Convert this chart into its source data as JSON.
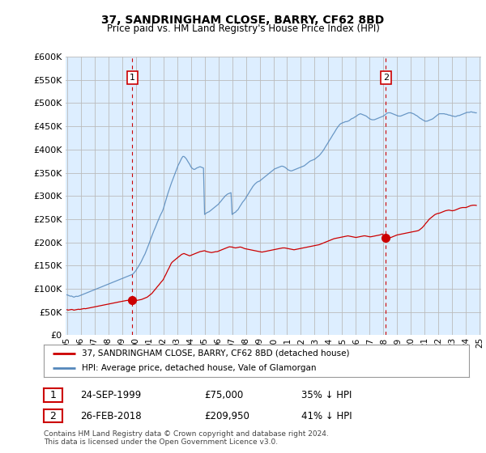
{
  "title": "37, SANDRINGHAM CLOSE, BARRY, CF62 8BD",
  "subtitle": "Price paid vs. HM Land Registry's House Price Index (HPI)",
  "legend_line1": "37, SANDRINGHAM CLOSE, BARRY, CF62 8BD (detached house)",
  "legend_line2": "HPI: Average price, detached house, Vale of Glamorgan",
  "footnote": "Contains HM Land Registry data © Crown copyright and database right 2024.\nThis data is licensed under the Open Government Licence v3.0.",
  "transaction1_label": "1",
  "transaction1_date": "24-SEP-1999",
  "transaction1_price": "£75,000",
  "transaction1_hpi": "35% ↓ HPI",
  "transaction2_label": "2",
  "transaction2_date": "26-FEB-2018",
  "transaction2_price": "£209,950",
  "transaction2_hpi": "41% ↓ HPI",
  "red_color": "#cc0000",
  "blue_color": "#5588bb",
  "vline_color": "#cc0000",
  "grid_color": "#bbbbbb",
  "bg_color": "#ffffff",
  "plot_bg_color": "#ddeeff",
  "ylim": [
    0,
    600000
  ],
  "yticks": [
    0,
    50000,
    100000,
    150000,
    200000,
    250000,
    300000,
    350000,
    400000,
    450000,
    500000,
    550000,
    600000
  ],
  "marker1_x": 1999.75,
  "marker1_y": 75000,
  "marker2_x": 2018.17,
  "marker2_y": 209950,
  "xlim_left": 1994.9,
  "xlim_right": 2025.1,
  "hpi_x": [
    1995.0,
    1995.08,
    1995.17,
    1995.25,
    1995.33,
    1995.42,
    1995.5,
    1995.58,
    1995.67,
    1995.75,
    1995.83,
    1995.92,
    1996.0,
    1996.08,
    1996.17,
    1996.25,
    1996.33,
    1996.42,
    1996.5,
    1996.58,
    1996.67,
    1996.75,
    1996.83,
    1996.92,
    1997.0,
    1997.08,
    1997.17,
    1997.25,
    1997.33,
    1997.42,
    1997.5,
    1997.58,
    1997.67,
    1997.75,
    1997.83,
    1997.92,
    1998.0,
    1998.08,
    1998.17,
    1998.25,
    1998.33,
    1998.42,
    1998.5,
    1998.58,
    1998.67,
    1998.75,
    1998.83,
    1998.92,
    1999.0,
    1999.08,
    1999.17,
    1999.25,
    1999.33,
    1999.42,
    1999.5,
    1999.58,
    1999.67,
    1999.75,
    1999.83,
    1999.92,
    2000.0,
    2000.08,
    2000.17,
    2000.25,
    2000.33,
    2000.42,
    2000.5,
    2000.58,
    2000.67,
    2000.75,
    2000.83,
    2000.92,
    2001.0,
    2001.08,
    2001.17,
    2001.25,
    2001.33,
    2001.42,
    2001.5,
    2001.58,
    2001.67,
    2001.75,
    2001.83,
    2001.92,
    2002.0,
    2002.08,
    2002.17,
    2002.25,
    2002.33,
    2002.42,
    2002.5,
    2002.58,
    2002.67,
    2002.75,
    2002.83,
    2002.92,
    2003.0,
    2003.08,
    2003.17,
    2003.25,
    2003.33,
    2003.42,
    2003.5,
    2003.58,
    2003.67,
    2003.75,
    2003.83,
    2003.92,
    2004.0,
    2004.08,
    2004.17,
    2004.25,
    2004.33,
    2004.42,
    2004.5,
    2004.58,
    2004.67,
    2004.75,
    2004.83,
    2004.92,
    2005.0,
    2005.08,
    2005.17,
    2005.25,
    2005.33,
    2005.42,
    2005.5,
    2005.58,
    2005.67,
    2005.75,
    2005.83,
    2005.92,
    2006.0,
    2006.08,
    2006.17,
    2006.25,
    2006.33,
    2006.42,
    2006.5,
    2006.58,
    2006.67,
    2006.75,
    2006.83,
    2006.92,
    2007.0,
    2007.08,
    2007.17,
    2007.25,
    2007.33,
    2007.42,
    2007.5,
    2007.58,
    2007.67,
    2007.75,
    2007.83,
    2007.92,
    2008.0,
    2008.08,
    2008.17,
    2008.25,
    2008.33,
    2008.42,
    2008.5,
    2008.58,
    2008.67,
    2008.75,
    2008.83,
    2008.92,
    2009.0,
    2009.08,
    2009.17,
    2009.25,
    2009.33,
    2009.42,
    2009.5,
    2009.58,
    2009.67,
    2009.75,
    2009.83,
    2009.92,
    2010.0,
    2010.08,
    2010.17,
    2010.25,
    2010.33,
    2010.42,
    2010.5,
    2010.58,
    2010.67,
    2010.75,
    2010.83,
    2010.92,
    2011.0,
    2011.08,
    2011.17,
    2011.25,
    2011.33,
    2011.42,
    2011.5,
    2011.58,
    2011.67,
    2011.75,
    2011.83,
    2011.92,
    2012.0,
    2012.08,
    2012.17,
    2012.25,
    2012.33,
    2012.42,
    2012.5,
    2012.58,
    2012.67,
    2012.75,
    2012.83,
    2012.92,
    2013.0,
    2013.08,
    2013.17,
    2013.25,
    2013.33,
    2013.42,
    2013.5,
    2013.58,
    2013.67,
    2013.75,
    2013.83,
    2013.92,
    2014.0,
    2014.08,
    2014.17,
    2014.25,
    2014.33,
    2014.42,
    2014.5,
    2014.58,
    2014.67,
    2014.75,
    2014.83,
    2014.92,
    2015.0,
    2015.08,
    2015.17,
    2015.25,
    2015.33,
    2015.42,
    2015.5,
    2015.58,
    2015.67,
    2015.75,
    2015.83,
    2015.92,
    2016.0,
    2016.08,
    2016.17,
    2016.25,
    2016.33,
    2016.42,
    2016.5,
    2016.58,
    2016.67,
    2016.75,
    2016.83,
    2016.92,
    2017.0,
    2017.08,
    2017.17,
    2017.25,
    2017.33,
    2017.42,
    2017.5,
    2017.58,
    2017.67,
    2017.75,
    2017.83,
    2017.92,
    2018.0,
    2018.08,
    2018.17,
    2018.25,
    2018.33,
    2018.42,
    2018.5,
    2018.58,
    2018.67,
    2018.75,
    2018.83,
    2018.92,
    2019.0,
    2019.08,
    2019.17,
    2019.25,
    2019.33,
    2019.42,
    2019.5,
    2019.58,
    2019.67,
    2019.75,
    2019.83,
    2019.92,
    2020.0,
    2020.08,
    2020.17,
    2020.25,
    2020.33,
    2020.42,
    2020.5,
    2020.58,
    2020.67,
    2020.75,
    2020.83,
    2020.92,
    2021.0,
    2021.08,
    2021.17,
    2021.25,
    2021.33,
    2021.42,
    2021.5,
    2021.58,
    2021.67,
    2021.75,
    2021.83,
    2021.92,
    2022.0,
    2022.08,
    2022.17,
    2022.25,
    2022.33,
    2022.42,
    2022.5,
    2022.58,
    2022.67,
    2022.75,
    2022.83,
    2022.92,
    2023.0,
    2023.08,
    2023.17,
    2023.25,
    2023.33,
    2023.42,
    2023.5,
    2023.58,
    2023.67,
    2023.75,
    2023.83,
    2023.92,
    2024.0,
    2024.08,
    2024.17,
    2024.25,
    2024.33,
    2024.42,
    2024.5,
    2024.58,
    2024.67,
    2024.75
  ],
  "hpi_y": [
    87000,
    86000,
    85000,
    84000,
    84500,
    83000,
    82000,
    83000,
    84000,
    83500,
    84000,
    85000,
    86000,
    87000,
    88000,
    89000,
    90000,
    91000,
    92000,
    93000,
    94000,
    95000,
    96000,
    97000,
    98000,
    99000,
    100000,
    101000,
    102000,
    103000,
    104000,
    105000,
    106000,
    107000,
    108000,
    109000,
    110000,
    111000,
    112000,
    113000,
    114000,
    115000,
    116000,
    117000,
    118000,
    119000,
    120000,
    121000,
    122000,
    123000,
    124000,
    125000,
    126000,
    127000,
    128000,
    129000,
    130000,
    131000,
    133000,
    136000,
    139000,
    143000,
    147000,
    151000,
    155000,
    160000,
    165000,
    170000,
    175000,
    181000,
    187000,
    194000,
    200000,
    207000,
    214000,
    220000,
    226000,
    232000,
    238000,
    244000,
    250000,
    256000,
    261000,
    266000,
    272000,
    280000,
    289000,
    297000,
    305000,
    313000,
    320000,
    327000,
    334000,
    340000,
    346000,
    353000,
    360000,
    366000,
    371000,
    376000,
    381000,
    385000,
    385000,
    383000,
    380000,
    376000,
    372000,
    368000,
    363000,
    360000,
    358000,
    357000,
    358000,
    360000,
    361000,
    362000,
    363000,
    362000,
    361000,
    360000,
    260000,
    262000,
    264000,
    265000,
    266000,
    268000,
    270000,
    272000,
    274000,
    276000,
    278000,
    280000,
    282000,
    285000,
    288000,
    291000,
    294000,
    297000,
    300000,
    302000,
    304000,
    305000,
    306000,
    307000,
    260000,
    262000,
    264000,
    265000,
    268000,
    270000,
    274000,
    278000,
    282000,
    286000,
    289000,
    292000,
    296000,
    300000,
    304000,
    308000,
    312000,
    316000,
    320000,
    323000,
    326000,
    328000,
    330000,
    331000,
    332000,
    334000,
    336000,
    338000,
    340000,
    342000,
    344000,
    346000,
    348000,
    350000,
    352000,
    354000,
    356000,
    358000,
    359000,
    360000,
    361000,
    362000,
    363000,
    364000,
    364000,
    363000,
    362000,
    360000,
    358000,
    356000,
    355000,
    354000,
    354000,
    355000,
    356000,
    357000,
    358000,
    359000,
    360000,
    361000,
    362000,
    363000,
    364000,
    365000,
    367000,
    369000,
    371000,
    373000,
    375000,
    376000,
    377000,
    378000,
    379000,
    381000,
    383000,
    385000,
    387000,
    390000,
    393000,
    396000,
    400000,
    404000,
    408000,
    412000,
    416000,
    420000,
    424000,
    428000,
    432000,
    436000,
    440000,
    444000,
    448000,
    451000,
    454000,
    456000,
    457000,
    458000,
    459000,
    460000,
    460000,
    461000,
    462000,
    464000,
    466000,
    467000,
    468000,
    470000,
    471000,
    473000,
    475000,
    476000,
    477000,
    476000,
    475000,
    474000,
    473000,
    472000,
    470000,
    468000,
    466000,
    465000,
    464000,
    464000,
    464000,
    465000,
    466000,
    467000,
    468000,
    469000,
    470000,
    471000,
    472000,
    474000,
    476000,
    478000,
    479000,
    479000,
    479000,
    478000,
    477000,
    476000,
    475000,
    474000,
    473000,
    472000,
    472000,
    472000,
    473000,
    474000,
    475000,
    476000,
    477000,
    478000,
    479000,
    479000,
    479000,
    478000,
    477000,
    476000,
    474000,
    473000,
    471000,
    469000,
    467000,
    466000,
    464000,
    463000,
    461000,
    461000,
    461000,
    462000,
    463000,
    464000,
    465000,
    466000,
    468000,
    470000,
    472000,
    474000,
    476000,
    477000,
    477000,
    477000,
    477000,
    477000,
    476000,
    476000,
    475000,
    474000,
    474000,
    473000,
    472000,
    472000,
    471000,
    471000,
    472000,
    473000,
    473000,
    474000,
    475000,
    476000,
    477000,
    478000,
    479000,
    480000,
    480000,
    480000,
    481000,
    481000,
    480000,
    480000,
    479000,
    479000
  ],
  "red_x": [
    1995.0,
    1995.08,
    1995.17,
    1995.25,
    1995.33,
    1995.42,
    1995.5,
    1995.58,
    1995.67,
    1995.75,
    1995.83,
    1995.92,
    1996.0,
    1996.08,
    1996.17,
    1996.25,
    1996.33,
    1996.42,
    1996.5,
    1996.58,
    1996.67,
    1996.75,
    1996.83,
    1996.92,
    1997.0,
    1997.08,
    1997.17,
    1997.25,
    1997.33,
    1997.42,
    1997.5,
    1997.58,
    1997.67,
    1997.75,
    1997.83,
    1997.92,
    1998.0,
    1998.08,
    1998.17,
    1998.25,
    1998.33,
    1998.42,
    1998.5,
    1998.58,
    1998.67,
    1998.75,
    1998.83,
    1998.92,
    1999.0,
    1999.08,
    1999.17,
    1999.25,
    1999.33,
    1999.42,
    1999.5,
    1999.58,
    1999.67,
    1999.75,
    2000.0,
    2000.08,
    2000.17,
    2000.25,
    2000.33,
    2000.42,
    2000.5,
    2000.58,
    2000.67,
    2000.75,
    2000.83,
    2000.92,
    2001.0,
    2001.08,
    2001.17,
    2001.25,
    2001.33,
    2001.42,
    2001.5,
    2001.58,
    2001.67,
    2001.75,
    2001.83,
    2001.92,
    2002.0,
    2002.08,
    2002.17,
    2002.25,
    2002.33,
    2002.42,
    2002.5,
    2002.58,
    2002.67,
    2002.75,
    2002.83,
    2002.92,
    2003.0,
    2003.08,
    2003.17,
    2003.25,
    2003.33,
    2003.42,
    2003.5,
    2003.58,
    2003.67,
    2003.75,
    2003.83,
    2003.92,
    2004.0,
    2004.08,
    2004.17,
    2004.25,
    2004.33,
    2004.42,
    2004.5,
    2004.58,
    2004.67,
    2004.75,
    2004.83,
    2004.92,
    2005.0,
    2005.08,
    2005.17,
    2005.25,
    2005.33,
    2005.42,
    2005.5,
    2005.58,
    2005.67,
    2005.75,
    2005.83,
    2005.92,
    2006.0,
    2006.08,
    2006.17,
    2006.25,
    2006.33,
    2006.42,
    2006.5,
    2006.58,
    2006.67,
    2006.75,
    2006.83,
    2006.92,
    2007.0,
    2007.08,
    2007.17,
    2007.25,
    2007.33,
    2007.42,
    2007.5,
    2007.58,
    2007.67,
    2007.75,
    2007.83,
    2007.92,
    2008.0,
    2008.08,
    2008.17,
    2008.25,
    2008.33,
    2008.42,
    2008.5,
    2008.58,
    2008.67,
    2008.75,
    2008.83,
    2008.92,
    2009.0,
    2009.08,
    2009.17,
    2009.25,
    2009.33,
    2009.42,
    2009.5,
    2009.58,
    2009.67,
    2009.75,
    2009.83,
    2009.92,
    2010.0,
    2010.08,
    2010.17,
    2010.25,
    2010.33,
    2010.42,
    2010.5,
    2010.58,
    2010.67,
    2010.75,
    2010.83,
    2010.92,
    2011.0,
    2011.08,
    2011.17,
    2011.25,
    2011.33,
    2011.42,
    2011.5,
    2011.58,
    2011.67,
    2011.75,
    2011.83,
    2011.92,
    2012.0,
    2012.08,
    2012.17,
    2012.25,
    2012.33,
    2012.42,
    2012.5,
    2012.58,
    2012.67,
    2012.75,
    2012.83,
    2012.92,
    2013.0,
    2013.08,
    2013.17,
    2013.25,
    2013.33,
    2013.42,
    2013.5,
    2013.58,
    2013.67,
    2013.75,
    2013.83,
    2013.92,
    2014.0,
    2014.08,
    2014.17,
    2014.25,
    2014.33,
    2014.42,
    2014.5,
    2014.58,
    2014.67,
    2014.75,
    2014.83,
    2014.92,
    2015.0,
    2015.08,
    2015.17,
    2015.25,
    2015.33,
    2015.42,
    2015.5,
    2015.58,
    2015.67,
    2015.75,
    2015.83,
    2015.92,
    2016.0,
    2016.08,
    2016.17,
    2016.25,
    2016.33,
    2016.42,
    2016.5,
    2016.58,
    2016.67,
    2016.75,
    2016.83,
    2016.92,
    2017.0,
    2017.08,
    2017.17,
    2017.25,
    2017.33,
    2017.42,
    2017.5,
    2017.58,
    2017.67,
    2017.75,
    2017.83,
    2017.92,
    2018.17,
    2018.5,
    2018.58,
    2018.67,
    2018.75,
    2018.83,
    2018.92,
    2019.0,
    2019.08,
    2019.17,
    2019.25,
    2019.33,
    2019.42,
    2019.5,
    2019.58,
    2019.67,
    2019.75,
    2019.83,
    2019.92,
    2020.0,
    2020.08,
    2020.17,
    2020.25,
    2020.33,
    2020.42,
    2020.5,
    2020.58,
    2020.67,
    2020.75,
    2020.83,
    2020.92,
    2021.0,
    2021.08,
    2021.17,
    2021.25,
    2021.33,
    2021.42,
    2021.5,
    2021.58,
    2021.67,
    2021.75,
    2021.83,
    2021.92,
    2022.0,
    2022.08,
    2022.17,
    2022.25,
    2022.33,
    2022.42,
    2022.5,
    2022.58,
    2022.67,
    2022.75,
    2022.83,
    2022.92,
    2023.0,
    2023.08,
    2023.17,
    2023.25,
    2023.33,
    2023.42,
    2023.5,
    2023.58,
    2023.67,
    2023.75,
    2023.83,
    2023.92,
    2024.0,
    2024.08,
    2024.17,
    2024.25,
    2024.33,
    2024.42,
    2024.5,
    2024.58,
    2024.67,
    2024.75
  ],
  "red_y": [
    55000,
    54000,
    54500,
    55000,
    55500,
    55000,
    54000,
    54500,
    55000,
    55500,
    56000,
    55500,
    56000,
    56500,
    57000,
    57500,
    57000,
    57500,
    58000,
    58500,
    59000,
    59500,
    60000,
    60500,
    61000,
    61500,
    62000,
    62500,
    63000,
    63500,
    64000,
    64500,
    65000,
    65500,
    66000,
    66500,
    67000,
    67500,
    68000,
    68500,
    69000,
    69500,
    70000,
    70500,
    71000,
    71500,
    72000,
    72500,
    73000,
    73500,
    74000,
    74500,
    74800,
    75000,
    75200,
    75000,
    74800,
    75000,
    74500,
    75000,
    75500,
    76000,
    76500,
    77000,
    78000,
    79000,
    80000,
    81000,
    82000,
    84000,
    86000,
    88000,
    90000,
    93000,
    96000,
    99000,
    102000,
    105000,
    108000,
    111000,
    114000,
    117000,
    120000,
    125000,
    130000,
    135000,
    140000,
    145000,
    150000,
    155000,
    158000,
    160000,
    162000,
    164000,
    166000,
    168000,
    170000,
    172000,
    174000,
    175000,
    176000,
    175000,
    174000,
    173000,
    172000,
    171000,
    172000,
    173000,
    174000,
    175000,
    176000,
    177000,
    178000,
    179000,
    180000,
    180500,
    181000,
    181500,
    182000,
    181000,
    180000,
    179500,
    179000,
    178500,
    178000,
    178500,
    179000,
    179500,
    180000,
    180000,
    181000,
    182000,
    183000,
    184000,
    185000,
    186000,
    187000,
    188000,
    189000,
    190000,
    190500,
    190000,
    190000,
    189000,
    188500,
    188000,
    188500,
    189000,
    189500,
    190000,
    189500,
    188500,
    187500,
    186500,
    186000,
    185500,
    185000,
    184500,
    184000,
    183500,
    183000,
    182500,
    182000,
    181500,
    181000,
    180500,
    180000,
    179500,
    179000,
    179500,
    180000,
    180500,
    181000,
    181500,
    182000,
    182500,
    183000,
    183500,
    184000,
    184500,
    185000,
    185500,
    186000,
    186500,
    187000,
    187500,
    188000,
    188000,
    188000,
    187500,
    187000,
    186500,
    186000,
    185500,
    185000,
    184500,
    184000,
    184500,
    185000,
    185500,
    186000,
    186500,
    187000,
    187500,
    188000,
    188500,
    189000,
    189500,
    190000,
    190500,
    191000,
    191500,
    192000,
    192500,
    193000,
    193500,
    194000,
    194500,
    195000,
    196000,
    197000,
    198000,
    199000,
    200000,
    201000,
    202000,
    203000,
    204000,
    205000,
    206000,
    207000,
    208000,
    208500,
    209000,
    209500,
    210000,
    210500,
    211000,
    211500,
    212000,
    212500,
    213000,
    213500,
    214000,
    213500,
    213000,
    212500,
    212000,
    211500,
    211000,
    210500,
    211000,
    211500,
    212000,
    212500,
    213000,
    213500,
    214000,
    214000,
    213500,
    213000,
    212500,
    212000,
    212000,
    212500,
    213000,
    213500,
    214000,
    214500,
    215000,
    215500,
    216000,
    217000,
    218000,
    209950,
    210000,
    211000,
    212000,
    213000,
    214000,
    215000,
    216000,
    216500,
    217000,
    217500,
    218000,
    218500,
    219000,
    219500,
    220000,
    220500,
    221000,
    221500,
    222000,
    222500,
    223000,
    223500,
    224000,
    224500,
    225000,
    226000,
    228000,
    230000,
    232000,
    235000,
    238000,
    241000,
    244000,
    247000,
    250000,
    252000,
    254000,
    256000,
    258000,
    260000,
    261000,
    262000,
    262500,
    263000,
    264000,
    265000,
    266000,
    267000,
    268000,
    268500,
    269000,
    269500,
    269000,
    268500,
    268000,
    268500,
    269000,
    270000,
    271000,
    272000,
    273000,
    274000,
    274500,
    275000,
    275000,
    275000,
    275000,
    276000,
    277000,
    278000,
    279000,
    279500,
    280000,
    280000,
    280000,
    279500
  ]
}
